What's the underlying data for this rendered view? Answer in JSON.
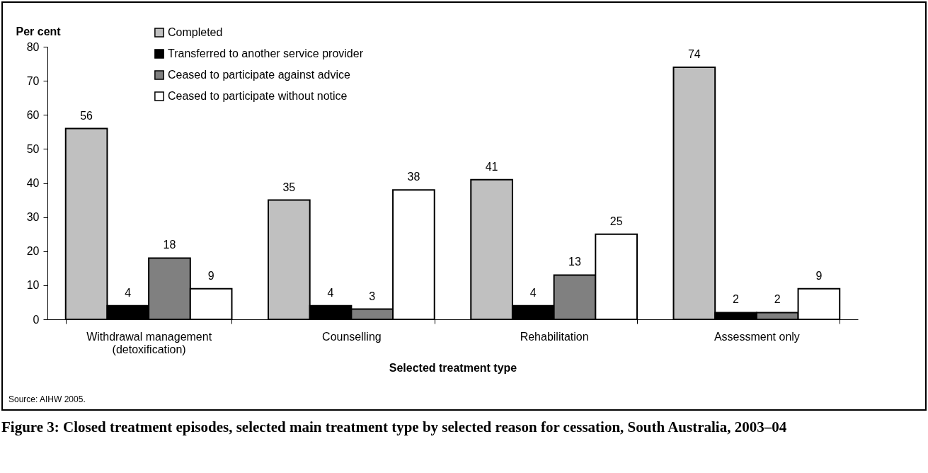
{
  "chart_data": {
    "type": "bar",
    "title": "Figure 3: Closed treatment episodes, selected main treatment type by selected reason for cessation, South Australia, 2003–04",
    "xlabel": "Selected treatment type",
    "ylabel": "Per cent",
    "annotations": [
      "Source: AIHW 2005."
    ],
    "categories": [
      "Withdrawal management\n(detoxification)",
      "Counselling",
      "Rehabilitation",
      "Assessment only"
    ],
    "series": [
      {
        "name": "Completed",
        "color": "#c0c0c0",
        "values": [
          56,
          35,
          41,
          74
        ]
      },
      {
        "name": "Transferred to another service provider",
        "color": "#000000",
        "values": [
          4,
          4,
          4,
          2
        ]
      },
      {
        "name": "Ceased to participate against advice",
        "color": "#808080",
        "values": [
          18,
          3,
          13,
          2
        ]
      },
      {
        "name": "Ceased to participate without notice",
        "color": "#ffffff",
        "values": [
          9,
          38,
          25,
          9
        ]
      }
    ],
    "ylim": [
      0,
      80
    ],
    "yticks": [
      0,
      10,
      20,
      30,
      40,
      50,
      60,
      70,
      80
    ],
    "grid": false,
    "legend": "top left",
    "data_labels": true
  }
}
